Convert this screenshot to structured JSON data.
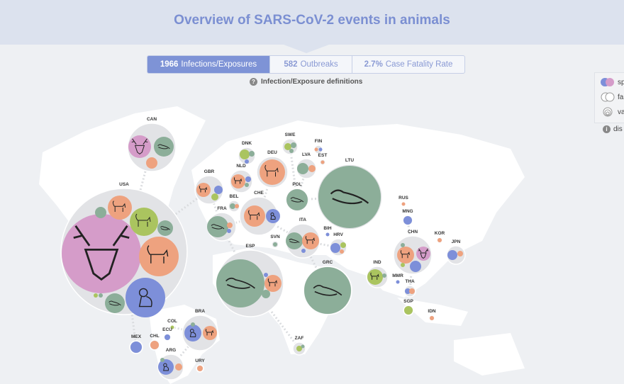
{
  "header": {
    "title": "Overview of SARS-CoV-2 events in animals"
  },
  "tabs": [
    {
      "value": "1966",
      "label": "Infections/Exposures",
      "active": true
    },
    {
      "value": "582",
      "label": "Outbreaks",
      "active": false
    },
    {
      "value": "2.7%",
      "label": "Case Fatality Rate",
      "active": false
    }
  ],
  "definitions_link": {
    "icon": "question-icon",
    "label": "Infection/Exposure definitions"
  },
  "legend": {
    "items": [
      {
        "icon": "species-colors-icon",
        "label": "sp"
      },
      {
        "icon": "family-icon",
        "label": "fa"
      },
      {
        "icon": "variant-rings-icon",
        "label": "va"
      }
    ]
  },
  "disclaimer": {
    "icon": "info-icon",
    "label": "dis"
  },
  "colors": {
    "deer": "#d59cc9",
    "cat": "#eea27f",
    "dog": "#7d8fd9",
    "mink": "#8cae99",
    "other": "#aac45f",
    "country": "#e2e3e6",
    "accent": "#7e93d6"
  },
  "countries": [
    "CAN",
    "USA",
    "GBR",
    "DNK",
    "NLD",
    "DEU",
    "BEL",
    "CHE",
    "FRA",
    "SWE",
    "FIN",
    "EST",
    "LVA",
    "POL",
    "LTU",
    "ITA",
    "SVN",
    "BIH",
    "HRV",
    "ESP",
    "GRC",
    "RUS",
    "MNG",
    "CHN",
    "KOR",
    "JPN",
    "IND",
    "MMR",
    "THA",
    "SGP",
    "IDN",
    "BRA",
    "COL",
    "ECU",
    "MEX",
    "CHL",
    "ARG",
    "URY",
    "ZAF"
  ]
}
